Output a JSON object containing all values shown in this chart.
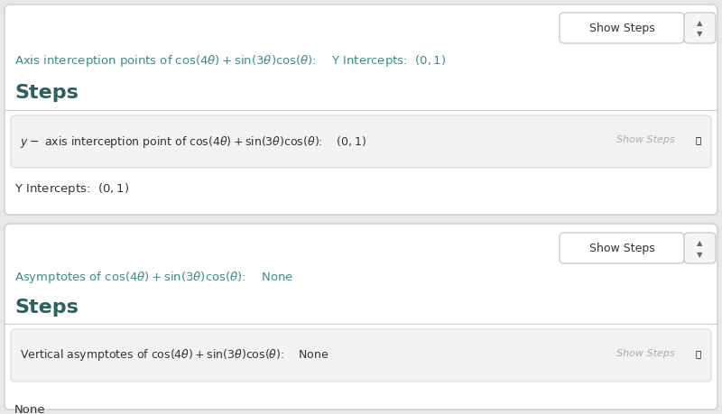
{
  "bg_color": "#e8e8e8",
  "panel_bg": "#ffffff",
  "border_color": "#cccccc",
  "teal_color": "#3d8b8b",
  "dark_text": "#333333",
  "gray_text": "#aaaaaa",
  "steps_color": "#2d5f5f",
  "inner_box_color": "#f2f2f2",
  "inner_border_color": "#e0e0e0",
  "panel1": {
    "btn_label": "Show Steps",
    "axis_text_plain": "Axis interception points of ",
    "axis_text_math": "$\\cos(4\\theta) + \\sin(3\\theta)\\cos(\\theta)$",
    "axis_text_suffix": ":    Y Intercepts:  $(0, 1)$",
    "steps_text": "Steps",
    "inner_text_pre": "$y -$ axis interception point of $\\cos(4\\theta) + \\sin(3\\theta)\\cos(\\theta)$:    $(0, 1)$",
    "y_intercepts_text": "Y Intercepts:  $(0, 1)$",
    "show_steps_italic": "Show Steps"
  },
  "panel2": {
    "btn_label": "Show Steps",
    "asym_text_pre": "Asymptotes of $\\cos(4\\theta) + \\sin(3\\theta)\\cos(\\theta)$:    None",
    "steps_text": "Steps",
    "inner_text_pre": "Vertical asymptotes of $\\cos(4\\theta) + \\sin(3\\theta)\\cos(\\theta)$:    None",
    "none_text": "None",
    "show_steps_italic": "Show Steps"
  }
}
